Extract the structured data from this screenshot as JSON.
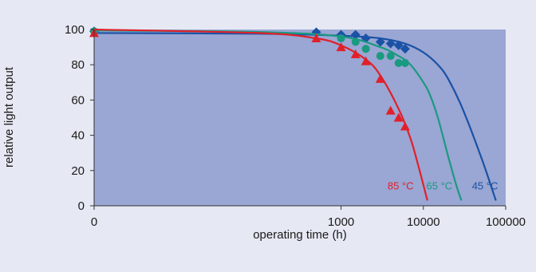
{
  "chart_data": {
    "type": "line",
    "title": "",
    "xlabel": "operating time (h)",
    "ylabel": "relative light output",
    "xscale": "log",
    "xlim": [
      1,
      100000
    ],
    "ylim": [
      0,
      100
    ],
    "xticks": [
      1,
      1000,
      10000,
      100000
    ],
    "xtick_labels": [
      "0",
      "1000",
      "10000",
      "100000"
    ],
    "yticks": [
      0,
      20,
      40,
      60,
      80,
      100
    ],
    "ytick_labels": [
      "0",
      "20",
      "40",
      "60",
      "80",
      "100"
    ],
    "grid": false,
    "legend": "none",
    "colors": {
      "background": "#e6e9f3",
      "plot_area": "#9aa6d3"
    },
    "series": [
      {
        "name": "45 °C",
        "color": "#1a52a6",
        "marker": "diamond",
        "points": [
          {
            "x": 1,
            "y": 99
          },
          {
            "x": 500,
            "y": 98.5
          },
          {
            "x": 1000,
            "y": 97
          },
          {
            "x": 1500,
            "y": 97
          },
          {
            "x": 2000,
            "y": 95
          },
          {
            "x": 3000,
            "y": 93
          },
          {
            "x": 4000,
            "y": 92
          },
          {
            "x": 5000,
            "y": 91
          },
          {
            "x": 6000,
            "y": 89
          }
        ],
        "curve": [
          {
            "x": 1,
            "y": 98
          },
          {
            "x": 100,
            "y": 97.6
          },
          {
            "x": 1000,
            "y": 96.5
          },
          {
            "x": 3000,
            "y": 95
          },
          {
            "x": 6000,
            "y": 92
          },
          {
            "x": 10000,
            "y": 87
          },
          {
            "x": 15000,
            "y": 80
          },
          {
            "x": 20000,
            "y": 72
          },
          {
            "x": 30000,
            "y": 55
          },
          {
            "x": 50000,
            "y": 28
          },
          {
            "x": 70000,
            "y": 8
          },
          {
            "x": 76000,
            "y": 3
          }
        ]
      },
      {
        "name": "65 °C",
        "color": "#1a9a80",
        "marker": "circle",
        "points": [
          {
            "x": 1,
            "y": 99
          },
          {
            "x": 1000,
            "y": 95
          },
          {
            "x": 1500,
            "y": 93
          },
          {
            "x": 2000,
            "y": 89
          },
          {
            "x": 3000,
            "y": 85
          },
          {
            "x": 4000,
            "y": 85
          },
          {
            "x": 5000,
            "y": 81
          },
          {
            "x": 6000,
            "y": 81
          }
        ],
        "curve": [
          {
            "x": 1,
            "y": 99.5
          },
          {
            "x": 100,
            "y": 98.6
          },
          {
            "x": 1000,
            "y": 96
          },
          {
            "x": 3000,
            "y": 90
          },
          {
            "x": 5000,
            "y": 85
          },
          {
            "x": 7000,
            "y": 80
          },
          {
            "x": 10000,
            "y": 70
          },
          {
            "x": 12000,
            "y": 63
          },
          {
            "x": 15000,
            "y": 50
          },
          {
            "x": 20000,
            "y": 28
          },
          {
            "x": 25000,
            "y": 12
          },
          {
            "x": 29000,
            "y": 3
          }
        ]
      },
      {
        "name": "85 °C",
        "color": "#e0202a",
        "marker": "triangle",
        "points": [
          {
            "x": 1,
            "y": 98
          },
          {
            "x": 500,
            "y": 95
          },
          {
            "x": 1000,
            "y": 90
          },
          {
            "x": 1500,
            "y": 86
          },
          {
            "x": 2000,
            "y": 82
          },
          {
            "x": 3000,
            "y": 72
          },
          {
            "x": 4000,
            "y": 54
          },
          {
            "x": 5000,
            "y": 50
          },
          {
            "x": 6000,
            "y": 45
          }
        ],
        "curve": [
          {
            "x": 1,
            "y": 100
          },
          {
            "x": 100,
            "y": 98
          },
          {
            "x": 500,
            "y": 95
          },
          {
            "x": 1000,
            "y": 91
          },
          {
            "x": 2000,
            "y": 83
          },
          {
            "x": 3000,
            "y": 74
          },
          {
            "x": 5000,
            "y": 55
          },
          {
            "x": 7000,
            "y": 38
          },
          {
            "x": 9000,
            "y": 20
          },
          {
            "x": 10500,
            "y": 8
          },
          {
            "x": 11200,
            "y": 3
          }
        ]
      }
    ]
  }
}
